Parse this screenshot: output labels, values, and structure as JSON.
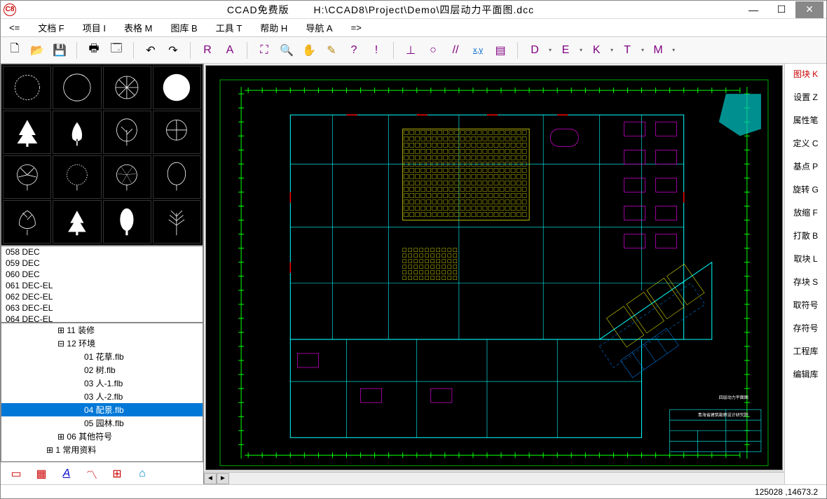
{
  "titlebar": {
    "app_icon_text": "C8",
    "app_name": "CCAD免费版",
    "file_path": "H:\\CCAD8\\Project\\Demo\\四层动力平面图.dcc"
  },
  "menubar": {
    "back": "<=",
    "items": [
      "文档 F",
      "项目 I",
      "表格 M",
      "图库 B",
      "工具 T",
      "帮助 H",
      "导航 A"
    ],
    "fwd": "=>"
  },
  "toolbar": {
    "tools_left": [
      {
        "name": "new-file",
        "glyph": "🗋",
        "color": "#000"
      },
      {
        "name": "open-file",
        "glyph": "📂",
        "color": "#b8860b"
      },
      {
        "name": "save",
        "glyph": "💾",
        "color": "#000"
      }
    ],
    "tools_print": [
      {
        "name": "print",
        "glyph": "🖶",
        "color": "#000"
      },
      {
        "name": "preview",
        "glyph": "🗔",
        "color": "#000"
      }
    ],
    "tools_undo": [
      {
        "name": "undo",
        "glyph": "↶",
        "color": "#000"
      },
      {
        "name": "redo",
        "glyph": "↷",
        "color": "#000"
      }
    ],
    "tools_text": [
      {
        "name": "r-tool",
        "glyph": "R",
        "color": "#800080"
      },
      {
        "name": "a-tool",
        "glyph": "A",
        "color": "#800080"
      }
    ],
    "tools_zoom": [
      {
        "name": "zoom-fit",
        "glyph": "⛶",
        "color": "#800080"
      },
      {
        "name": "zoom",
        "glyph": "🔍",
        "color": "#800080"
      },
      {
        "name": "pan",
        "glyph": "✋",
        "color": "#800080"
      },
      {
        "name": "pencil",
        "glyph": "✎",
        "color": "#b8860b"
      },
      {
        "name": "help",
        "glyph": "?",
        "color": "#800080"
      },
      {
        "name": "exclaim",
        "glyph": "!",
        "color": "#800080"
      }
    ],
    "tools_draw": [
      {
        "name": "perpendicular",
        "glyph": "⊥",
        "color": "#800080"
      },
      {
        "name": "circle",
        "glyph": "○",
        "color": "#800080"
      },
      {
        "name": "parallel",
        "glyph": "//",
        "color": "#800080"
      },
      {
        "name": "xy",
        "glyph": "x,y",
        "color": "#0066cc",
        "underline": true
      },
      {
        "name": "layers",
        "glyph": "▤",
        "color": "#800080"
      }
    ],
    "letter_tools": [
      {
        "name": "d-tool",
        "glyph": "D",
        "color": "#800080"
      },
      {
        "name": "e-tool",
        "glyph": "E",
        "color": "#800080"
      },
      {
        "name": "k-tool",
        "glyph": "K",
        "color": "#800080"
      },
      {
        "name": "t-tool",
        "glyph": "T",
        "color": "#800080"
      },
      {
        "name": "m-tool",
        "glyph": "M",
        "color": "#800080"
      }
    ]
  },
  "list": {
    "items": [
      "058 DEC",
      "059 DEC",
      "060 DEC",
      "061 DEC-EL",
      "062 DEC-EL",
      "063 DEC-EL",
      "064 DEC-EL"
    ]
  },
  "tree": {
    "items": [
      {
        "indent": "ind1",
        "label": "⊞ 11 装修",
        "selected": false
      },
      {
        "indent": "ind1",
        "label": "⊟ 12 环境",
        "selected": false
      },
      {
        "indent": "ind3",
        "label": "01 花草.flb",
        "selected": false
      },
      {
        "indent": "ind3",
        "label": "02 树.flb",
        "selected": false
      },
      {
        "indent": "ind3",
        "label": "03 人-1.flb",
        "selected": false
      },
      {
        "indent": "ind3",
        "label": "03 人-2.flb",
        "selected": false
      },
      {
        "indent": "ind3",
        "label": "04 配景.flb",
        "selected": true
      },
      {
        "indent": "ind3",
        "label": "05 园林.flb",
        "selected": false
      },
      {
        "indent": "ind1",
        "label": "⊞ 06 其他符号",
        "selected": false
      },
      {
        "indent": "ind0",
        "label": "⊞ 1 常用资料",
        "selected": false
      }
    ]
  },
  "bottom_icons": [
    {
      "name": "tab1",
      "glyph": "▭",
      "color": "#c00"
    },
    {
      "name": "tab2",
      "glyph": "▦",
      "color": "#c00"
    },
    {
      "name": "font",
      "glyph": "A",
      "color": "#00c",
      "italic": true,
      "underline": true
    },
    {
      "name": "chart",
      "glyph": "〽",
      "color": "#c00"
    },
    {
      "name": "shapes",
      "glyph": "⊞",
      "color": "#c00"
    },
    {
      "name": "home",
      "glyph": "⌂",
      "color": "#08c"
    }
  ],
  "right_panel": {
    "items": [
      "图块 K",
      "设置 Z",
      "属性笔",
      "定义 C",
      "基点 P",
      "旋转 G",
      "放缩 F",
      "打散 B",
      "取块 L",
      "存块 S",
      "取符号",
      "存符号",
      "工程库",
      "编辑库"
    ]
  },
  "statusbar": {
    "coords": "125028  ,14673.2"
  },
  "colors": {
    "canvas_bg": "#000000",
    "drawing_frame": "#00ff00",
    "drawing_cyan": "#00ffff",
    "drawing_yellow": "#ffff00",
    "drawing_magenta": "#ff00ff",
    "drawing_red": "#ff0000",
    "drawing_white": "#ffffff",
    "cloud_fill": "#00cccc"
  }
}
